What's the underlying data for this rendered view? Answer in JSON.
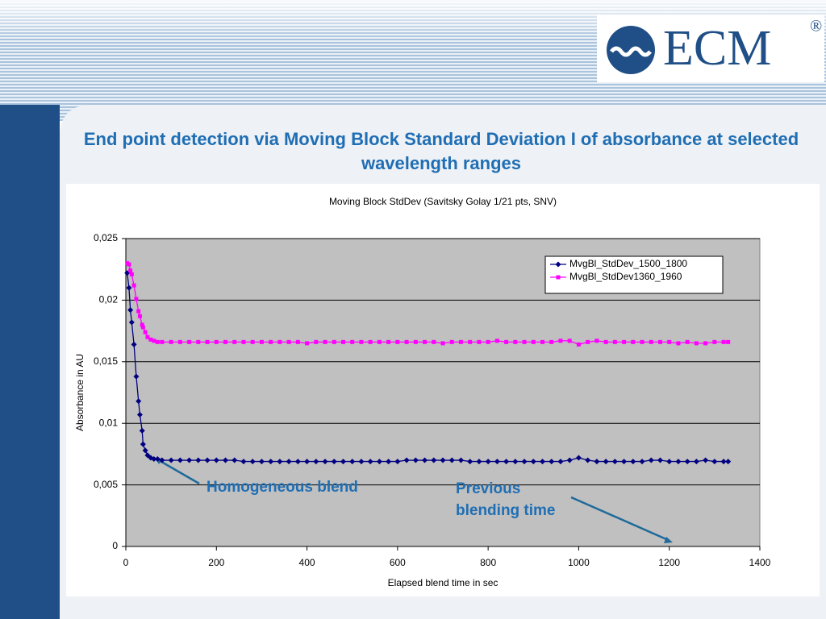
{
  "slide_title": "End point detection via Moving Block Standard Deviation I of absorbance at selected wavelength ranges",
  "logo": {
    "text": "ECM",
    "mark": "®"
  },
  "chart_data": {
    "type": "line",
    "title": "Moving Block StdDev (Savitsky Golay 1/21 pts, SNV)",
    "x_label": "Elapsed blend time in sec",
    "y_label": "Absorbance in AU",
    "xlim": [
      0,
      1400
    ],
    "xticks": [
      0,
      200,
      400,
      600,
      800,
      1000,
      1200,
      1400
    ],
    "ylim": [
      0,
      0.025
    ],
    "yticks": [
      0,
      {
        "value": 0.005,
        "label": "0,005"
      },
      {
        "value": 0.01,
        "label": "0,01"
      },
      {
        "value": 0.015,
        "label": "0,015"
      },
      {
        "value": 0.02,
        "label": "0,02"
      },
      {
        "value": 0.025,
        "label": "0,025"
      }
    ],
    "grid": true,
    "legend": "upper right",
    "x": [
      3,
      7,
      10,
      13,
      18,
      23,
      28,
      31,
      36,
      38,
      43,
      48,
      55,
      62,
      70,
      80,
      100,
      120,
      140,
      160,
      180,
      200,
      220,
      240,
      260,
      280,
      300,
      320,
      340,
      360,
      380,
      400,
      420,
      440,
      460,
      480,
      500,
      520,
      540,
      560,
      580,
      600,
      620,
      640,
      660,
      680,
      700,
      720,
      740,
      760,
      780,
      800,
      820,
      840,
      860,
      880,
      900,
      920,
      940,
      960,
      980,
      1000,
      1020,
      1040,
      1060,
      1080,
      1100,
      1120,
      1140,
      1160,
      1180,
      1200,
      1220,
      1240,
      1260,
      1280,
      1300,
      1320,
      1330
    ],
    "series": [
      {
        "name": "MvgBl_StdDev_1500_1800",
        "color": "#000080",
        "marker": "diamond",
        "values": [
          0.0222,
          0.021,
          0.0192,
          0.0182,
          0.0164,
          0.0138,
          0.0118,
          0.0107,
          0.0094,
          0.0083,
          0.0078,
          0.0074,
          0.0072,
          0.0071,
          0.0071,
          0.007,
          0.007,
          0.007,
          0.007,
          0.007,
          0.007,
          0.007,
          0.007,
          0.007,
          0.0069,
          0.0069,
          0.0069,
          0.0069,
          0.0069,
          0.0069,
          0.0069,
          0.0069,
          0.0069,
          0.0069,
          0.0069,
          0.0069,
          0.0069,
          0.0069,
          0.0069,
          0.0069,
          0.0069,
          0.0069,
          0.007,
          0.007,
          0.007,
          0.007,
          0.007,
          0.007,
          0.007,
          0.0069,
          0.0069,
          0.0069,
          0.0069,
          0.0069,
          0.0069,
          0.0069,
          0.0069,
          0.0069,
          0.0069,
          0.0069,
          0.007,
          0.0072,
          0.007,
          0.0069,
          0.0069,
          0.0069,
          0.0069,
          0.0069,
          0.0069,
          0.007,
          0.007,
          0.0069,
          0.0069,
          0.0069,
          0.0069,
          0.007,
          0.0069,
          0.0069,
          0.0069
        ]
      },
      {
        "name": "MvgBl_StdDev1360_1960",
        "color": "#ff00ff",
        "marker": "square",
        "values": [
          0.023,
          0.0229,
          0.0224,
          0.0221,
          0.0212,
          0.0201,
          0.0191,
          0.0187,
          0.018,
          0.0178,
          0.0174,
          0.017,
          0.0168,
          0.0167,
          0.0166,
          0.0166,
          0.0166,
          0.0166,
          0.0166,
          0.0166,
          0.0166,
          0.0166,
          0.0166,
          0.0166,
          0.0166,
          0.0166,
          0.0166,
          0.0166,
          0.0166,
          0.0166,
          0.0166,
          0.0165,
          0.0166,
          0.0166,
          0.0166,
          0.0166,
          0.0166,
          0.0166,
          0.0166,
          0.0166,
          0.0166,
          0.0166,
          0.0166,
          0.0166,
          0.0166,
          0.0166,
          0.0165,
          0.0166,
          0.0166,
          0.0166,
          0.0166,
          0.0166,
          0.0167,
          0.0166,
          0.0166,
          0.0166,
          0.0166,
          0.0166,
          0.0166,
          0.0167,
          0.0167,
          0.0164,
          0.0166,
          0.0167,
          0.0166,
          0.0166,
          0.0166,
          0.0166,
          0.0166,
          0.0166,
          0.0166,
          0.0166,
          0.0165,
          0.0166,
          0.0165,
          0.0165,
          0.0166,
          0.0166,
          0.0166
        ]
      }
    ],
    "annotations": [
      "Homogeneous blend",
      "Previous blending time"
    ]
  }
}
